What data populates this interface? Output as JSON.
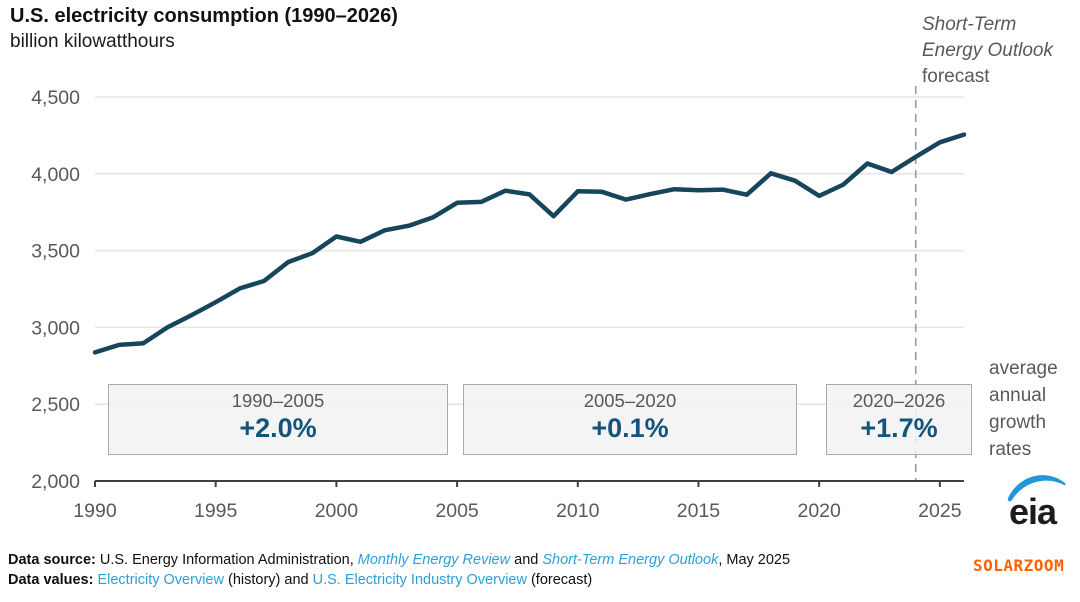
{
  "title": "U.S. electricity consumption (1990–2026)",
  "subtitle": "billion kilowatthours",
  "forecast_label": {
    "line1": "Short-Term",
    "line2": "Energy Outlook",
    "line3": "forecast"
  },
  "growth_note": "average annual growth rates",
  "growth_boxes": [
    {
      "range": "1990–2005",
      "rate": "+2.0%"
    },
    {
      "range": "2005–2020",
      "rate": "+0.1%"
    },
    {
      "range": "2020–2026",
      "rate": "+1.7%"
    }
  ],
  "chart_data": {
    "type": "line",
    "title": "U.S. electricity consumption (1990–2026)",
    "ylabel": "billion kilowatthours",
    "series": [
      {
        "name": "U.S. electricity consumption",
        "x": [
          1990,
          1991,
          1992,
          1993,
          1994,
          1995,
          1996,
          1997,
          1998,
          1999,
          2000,
          2001,
          2002,
          2003,
          2004,
          2005,
          2006,
          2007,
          2008,
          2009,
          2010,
          2011,
          2012,
          2013,
          2014,
          2015,
          2016,
          2017,
          2018,
          2019,
          2020,
          2021,
          2022,
          2023,
          2024,
          2025,
          2026
        ],
        "values": [
          2837,
          2886,
          2897,
          3000,
          3080,
          3164,
          3254,
          3302,
          3425,
          3483,
          3592,
          3557,
          3632,
          3662,
          3716,
          3811,
          3817,
          3890,
          3866,
          3724,
          3886,
          3883,
          3832,
          3868,
          3900,
          3893,
          3897,
          3864,
          4003,
          3955,
          3856,
          3930,
          4067,
          4012,
          4110,
          4205,
          4255
        ]
      }
    ],
    "xlim": [
      1990,
      2026
    ],
    "ylim": [
      2000,
      4500
    ],
    "xticks": [
      1990,
      1995,
      2000,
      2005,
      2010,
      2015,
      2020,
      2025
    ],
    "yticks": [
      {
        "v": 2000,
        "label": "2,000"
      },
      {
        "v": 2500,
        "label": "2,500"
      },
      {
        "v": 3000,
        "label": "3,000"
      },
      {
        "v": 3500,
        "label": "3,500"
      },
      {
        "v": 4000,
        "label": "4,000"
      },
      {
        "v": 4500,
        "label": "4,500"
      }
    ],
    "forecast_start": 2024,
    "grid": true,
    "legend": "none",
    "annotations": [
      {
        "period": "1990–2005",
        "avg_annual_growth": "+2.0%"
      },
      {
        "period": "2005–2020",
        "avg_annual_growth": "+0.1%"
      },
      {
        "period": "2020–2026",
        "avg_annual_growth": "+1.7%"
      }
    ]
  },
  "colors": {
    "line": "#16455c",
    "rate_text": "#14537a",
    "grid": "#e5e5e5",
    "axis": "#404040",
    "tick_label": "#595959",
    "dashed": "#999999",
    "link_blue": "#2d9fd9",
    "eia_blue": "#2196d8",
    "watermark_orange": "#ff6200"
  },
  "footer": {
    "source": {
      "label": "Data source: ",
      "pre": "U.S. Energy Information Administration, ",
      "link1": "Monthly Energy Review",
      "mid": " and ",
      "link2": "Short-Term Energy Outlook",
      "post": ", May 2025"
    },
    "values": {
      "label": "Data values: ",
      "link1": "Electricity Overview",
      "mid": " (history) and ",
      "link2": "U.S. Electricity Industry Overview",
      "post": " (forecast)"
    }
  },
  "logo_text": "eia",
  "watermark": "SOLARZOOM"
}
